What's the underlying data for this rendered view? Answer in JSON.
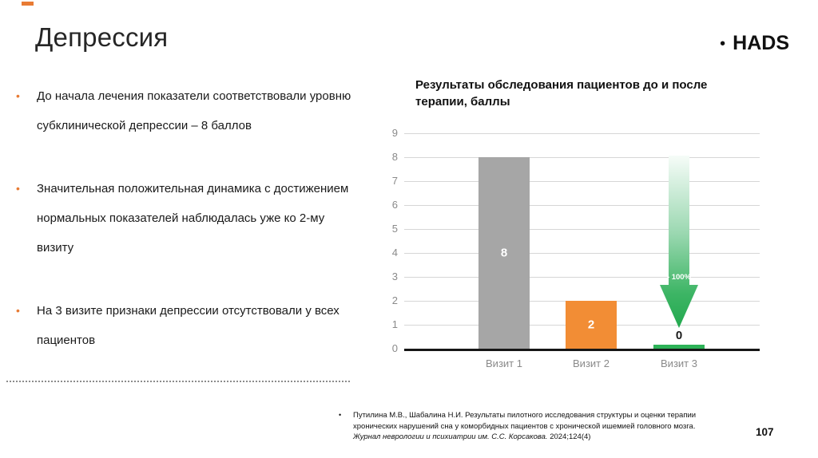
{
  "slide": {
    "title": "Депрессия",
    "tag_bullet": "•",
    "tag": "HADS",
    "page_number": "107"
  },
  "bullets": [
    "До начала лечения показатели соответствовали уровню субклинической депрессии – 8 баллов",
    "Значительная положительная динамика с достижением нормальных показателей наблюдалась уже ко 2-му визиту",
    "На 3 визите признаки депрессии отсутствовали у всех пациентов"
  ],
  "bullet_marker": "•",
  "chart_data": {
    "type": "bar",
    "title": "Результаты обследования пациентов до и после терапии, баллы",
    "categories": [
      "Визит 1",
      "Визит 2",
      "Визит 3"
    ],
    "values": [
      8,
      2,
      0
    ],
    "bar_labels": [
      "8",
      "2",
      "0"
    ],
    "bar_colors": [
      "#a6a6a6",
      "#f28d35",
      "#2db257"
    ],
    "annotation": "- 100%",
    "xlabel": "",
    "ylabel": "",
    "ylim": [
      0,
      9
    ],
    "yticks": [
      0,
      1,
      2,
      3,
      4,
      5,
      6,
      7,
      8,
      9
    ],
    "grid": true,
    "legend": false
  },
  "footnote": {
    "bullet": "•",
    "part_normal": "Путилина М.В., Шабалина Н.И. Результаты пилотного исследования структуры и оценки терапии хронических нарушений сна у коморбидных пациентов с хронической ишемией головного мозга. ",
    "part_italic": "Журнал неврологии и психиатрии им. С.С. Корсакова.",
    "part_tail": " 2024;124(4)"
  },
  "colors": {
    "accent_orange": "#e87b34",
    "bar_gray": "#a6a6a6",
    "bar_orange": "#f28d35",
    "bar_green": "#2db257",
    "axis_black": "#161616",
    "gridline_gray": "#d6d6d6",
    "tick_gray": "#8a8a8a"
  }
}
